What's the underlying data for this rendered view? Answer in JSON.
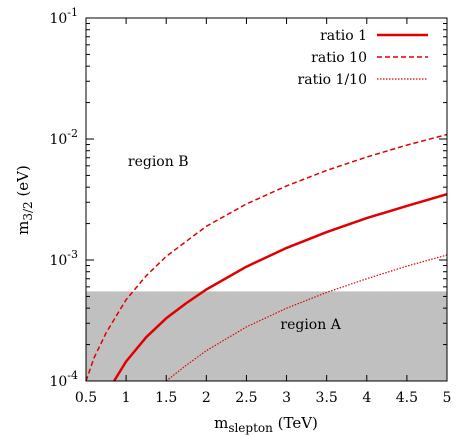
{
  "chart_data": {
    "type": "line",
    "xlabel_main": "m",
    "xlabel_sub": "slepton",
    "xlabel_unit": " (TeV)",
    "ylabel_main": "m",
    "ylabel_sub": "3/2",
    "ylabel_unit": " (eV)",
    "xlim": [
      0.5,
      5
    ],
    "ylim": [
      0.0001,
      0.1
    ],
    "yscale": "log",
    "x_ticks": [
      {
        "value": 0.5,
        "label": "0.5"
      },
      {
        "value": 1,
        "label": "1"
      },
      {
        "value": 1.5,
        "label": "1.5"
      },
      {
        "value": 2,
        "label": "2"
      },
      {
        "value": 2.5,
        "label": "2.5"
      },
      {
        "value": 3,
        "label": "3"
      },
      {
        "value": 3.5,
        "label": "3.5"
      },
      {
        "value": 4,
        "label": "4"
      },
      {
        "value": 4.5,
        "label": "4.5"
      },
      {
        "value": 5,
        "label": "5"
      }
    ],
    "y_ticks": [
      {
        "value": 0.0001,
        "base": "10",
        "exp": "-4"
      },
      {
        "value": 0.001,
        "base": "10",
        "exp": "-3"
      },
      {
        "value": 0.01,
        "base": "10",
        "exp": "-2"
      },
      {
        "value": 0.1,
        "base": "10",
        "exp": "-1"
      }
    ],
    "grid": false,
    "legend_position": "top-right",
    "shaded_region": {
      "y_min": 0.0001,
      "y_max": 0.00055,
      "color": "#c0c0c0"
    },
    "annotations": [
      {
        "text": "region B",
        "x": 1.4,
        "y": 0.006
      },
      {
        "text": "region A",
        "x": 3.3,
        "y": 0.00027
      }
    ],
    "series_color": "#e00000",
    "series": [
      {
        "name": "ratio 1",
        "style": "solid",
        "x": [
          0.85,
          1.0,
          1.25,
          1.5,
          1.75,
          2.0,
          2.5,
          3.0,
          3.5,
          4.0,
          4.5,
          5.0
        ],
        "y": [
          0.0001,
          0.000145,
          0.00023,
          0.00033,
          0.00044,
          0.00057,
          0.00088,
          0.00126,
          0.0017,
          0.00222,
          0.0028,
          0.0035
        ]
      },
      {
        "name": "ratio 10",
        "style": "dashed",
        "x": [
          0.5,
          0.6,
          0.75,
          1.0,
          1.25,
          1.5,
          2.0,
          2.5,
          3.0,
          3.5,
          4.0,
          4.5,
          5.0
        ],
        "y": [
          0.0001,
          0.000155,
          0.00025,
          0.00047,
          0.00074,
          0.00107,
          0.0019,
          0.0029,
          0.0041,
          0.0055,
          0.0071,
          0.0089,
          0.0109
        ]
      },
      {
        "name": "ratio 1/10",
        "style": "dotted",
        "x": [
          1.5,
          1.75,
          2.0,
          2.5,
          3.0,
          3.5,
          4.0,
          4.5,
          5.0
        ],
        "y": [
          0.0001,
          0.000135,
          0.000178,
          0.00028,
          0.0004,
          0.00054,
          0.0007,
          0.00089,
          0.0011
        ]
      }
    ]
  }
}
